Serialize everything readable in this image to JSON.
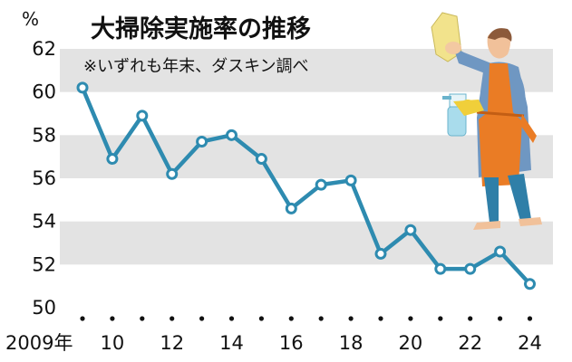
{
  "chart_data": {
    "type": "line",
    "title": "大掃除実施率の推移",
    "subtitle": "※いずれも年末、ダスキン調べ",
    "ylabel": "%",
    "ylim": [
      50,
      62
    ],
    "yticks": [
      "62",
      "60",
      "58",
      "56",
      "54",
      "52",
      "50"
    ],
    "x": [
      2009,
      2010,
      2011,
      2012,
      2013,
      2014,
      2015,
      2016,
      2017,
      2018,
      2019,
      2020,
      2021,
      2022,
      2023,
      2024
    ],
    "xtick_labels": [
      {
        "x": 2009,
        "label": "2009年"
      },
      {
        "x": 2010,
        "label": "10"
      },
      {
        "x": 2012,
        "label": "12"
      },
      {
        "x": 2014,
        "label": "14"
      },
      {
        "x": 2016,
        "label": "16"
      },
      {
        "x": 2018,
        "label": "18"
      },
      {
        "x": 2020,
        "label": "20"
      },
      {
        "x": 2022,
        "label": "22"
      },
      {
        "x": 2024,
        "label": "24"
      }
    ],
    "series": [
      {
        "values": [
          60.2,
          56.9,
          58.9,
          56.2,
          57.7,
          58.0,
          56.9,
          54.6,
          55.7,
          55.9,
          52.5,
          53.6,
          51.8,
          51.8,
          52.6,
          51.1
        ]
      }
    ],
    "grid": "horizontal alternating bands",
    "colors": {
      "line": "#2e8bb0",
      "band": "#e3e3e3",
      "dot": "#111111"
    },
    "illustration": "person-cleaning-icon"
  }
}
